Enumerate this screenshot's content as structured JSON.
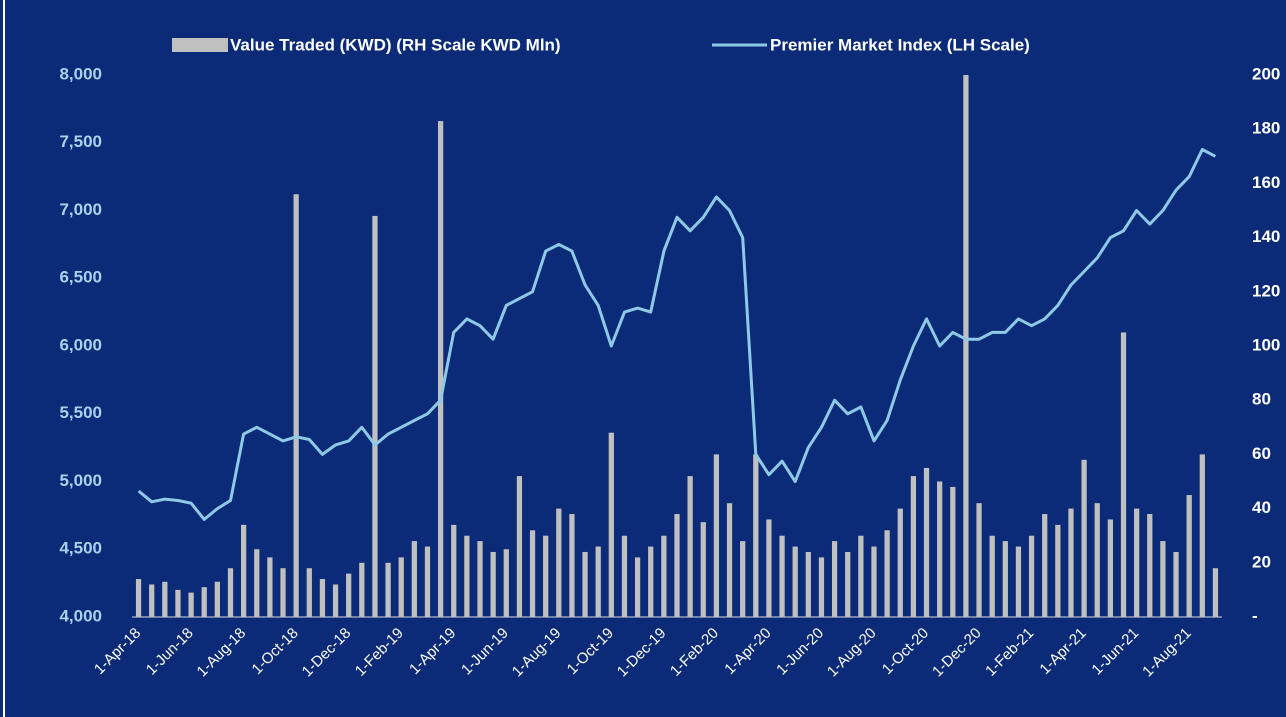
{
  "chart_data": {
    "type": "combo",
    "categories": [
      "1-Apr-18",
      null,
      null,
      null,
      "1-Jun-18",
      null,
      null,
      null,
      "1-Aug-18",
      null,
      null,
      null,
      "1-Oct-18",
      null,
      null,
      null,
      "1-Dec-18",
      null,
      null,
      null,
      "1-Feb-19",
      null,
      null,
      null,
      "1-Apr-19",
      null,
      null,
      null,
      "1-Jun-19",
      null,
      null,
      null,
      "1-Aug-19",
      null,
      null,
      null,
      "1-Oct-19",
      null,
      null,
      null,
      "1-Dec-19",
      null,
      null,
      null,
      "1-Feb-20",
      null,
      null,
      null,
      "1-Apr-20",
      null,
      null,
      null,
      "1-Jun-20",
      null,
      null,
      null,
      "1-Aug-20",
      null,
      null,
      null,
      "1-Oct-20",
      null,
      null,
      null,
      "1-Dec-20",
      null,
      null,
      null,
      "1-Feb-21",
      null,
      null,
      null,
      "1-Apr-21",
      null,
      null,
      null,
      "1-Jun-21",
      null,
      null,
      null,
      "1-Aug-21",
      null,
      null
    ],
    "series": [
      {
        "name": "Value Traded (KWD) (RH Scale KWD Mln)",
        "color": "#c0c0c0",
        "axis": "y2",
        "kind": "bar",
        "values": [
          14,
          12,
          13,
          10,
          9,
          11,
          13,
          18,
          34,
          25,
          22,
          18,
          156,
          18,
          14,
          12,
          16,
          20,
          148,
          20,
          22,
          28,
          26,
          183,
          34,
          30,
          28,
          24,
          25,
          52,
          32,
          30,
          40,
          38,
          24,
          26,
          68,
          30,
          22,
          26,
          30,
          38,
          52,
          35,
          60,
          42,
          28,
          60,
          36,
          30,
          26,
          24,
          22,
          28,
          24,
          30,
          26,
          32,
          40,
          52,
          55,
          50,
          48,
          200,
          42,
          30,
          28,
          26,
          30,
          38,
          34,
          40,
          58,
          42,
          36,
          105,
          40,
          38,
          28,
          24,
          45,
          60,
          18
        ]
      },
      {
        "name": "Premier Market Index (LH Scale)",
        "color": "#8ecae6",
        "axis": "y",
        "kind": "line",
        "values": [
          4930,
          4850,
          4870,
          4860,
          4840,
          4720,
          4800,
          4860,
          5350,
          5400,
          5350,
          5300,
          5330,
          5310,
          5200,
          5270,
          5300,
          5400,
          5270,
          5350,
          5400,
          5450,
          5500,
          5600,
          6100,
          6200,
          6150,
          6050,
          6300,
          6350,
          6400,
          6700,
          6750,
          6700,
          6450,
          6300,
          6000,
          6250,
          6280,
          6250,
          6700,
          6950,
          6850,
          6950,
          7100,
          7000,
          6800,
          5200,
          5050,
          5150,
          5000,
          5250,
          5400,
          5600,
          5500,
          5550,
          5300,
          5450,
          5750,
          6000,
          6200,
          6000,
          6100,
          6050,
          6050,
          6100,
          6100,
          6200,
          6150,
          6200,
          6300,
          6450,
          6550,
          6650,
          6800,
          6850,
          7000,
          6900,
          7000,
          7150,
          7250,
          7450,
          7400
        ]
      }
    ],
    "ylim": [
      4000,
      8000
    ],
    "yticks": [
      {
        "value": 4000,
        "label": "4,000"
      },
      {
        "value": 4500,
        "label": "4,500"
      },
      {
        "value": 5000,
        "label": "5,000"
      },
      {
        "value": 5500,
        "label": "5,500"
      },
      {
        "value": 6000,
        "label": "6,000"
      },
      {
        "value": 6500,
        "label": "6,500"
      },
      {
        "value": 7000,
        "label": "7,000"
      },
      {
        "value": 7500,
        "label": "7,500"
      },
      {
        "value": 8000,
        "label": "8,000"
      }
    ],
    "y2lim": [
      0,
      200
    ],
    "y2ticks": [
      {
        "value": 0,
        "label": "-"
      },
      20,
      40,
      60,
      80,
      100,
      120,
      140,
      160,
      180,
      200
    ]
  }
}
